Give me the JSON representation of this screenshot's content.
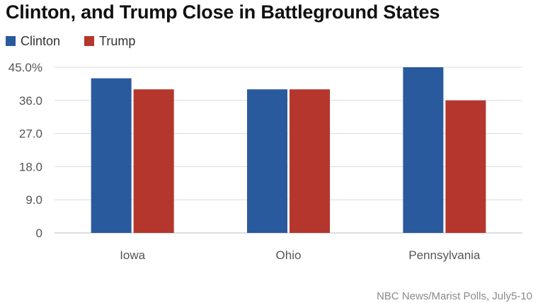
{
  "title": "Clinton, and Trump Close in Battleground States",
  "source": "NBC News/Marist Polls, July5-10",
  "legend": [
    {
      "label": "Clinton",
      "color": "#2a5a9e"
    },
    {
      "label": "Trump",
      "color": "#b5362c"
    }
  ],
  "chart_data": {
    "type": "bar",
    "categories": [
      "Iowa",
      "Ohio",
      "Pennsylvania"
    ],
    "series": [
      {
        "name": "Clinton",
        "values": [
          42,
          39,
          45
        ],
        "color": "#2a5a9e"
      },
      {
        "name": "Trump",
        "values": [
          39,
          39,
          36
        ],
        "color": "#b5362c"
      }
    ],
    "yticks": [
      0,
      9,
      18,
      27,
      36,
      45
    ],
    "ytick_labels": [
      "0",
      "9.0",
      "18.0",
      "27.0",
      "36.0",
      "45.0%"
    ],
    "ylim": [
      0,
      45
    ],
    "grid": true,
    "legend_position": "top-left"
  }
}
